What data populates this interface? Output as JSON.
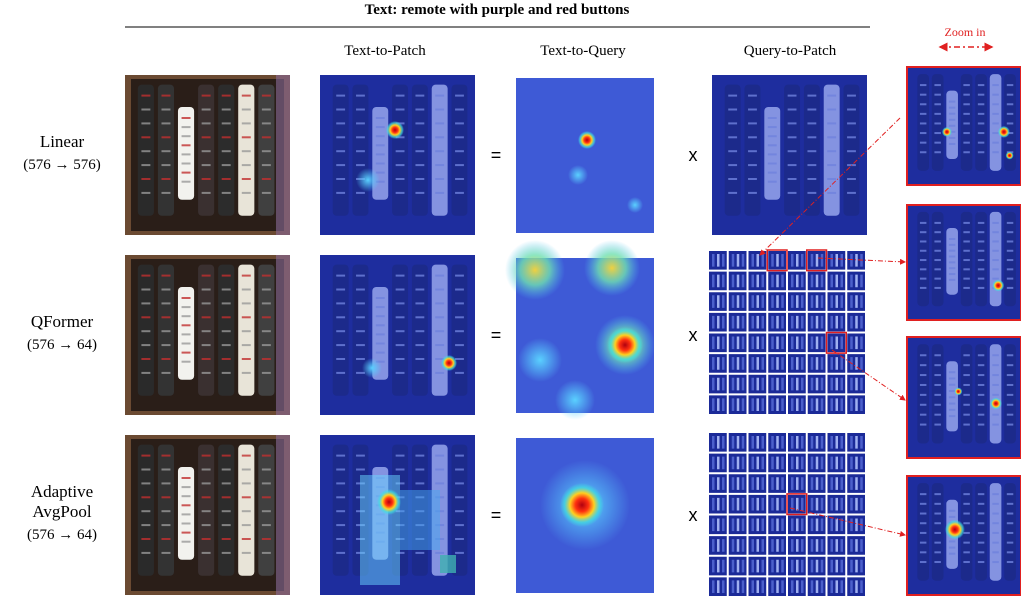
{
  "title": "Text: remote with purple and red buttons",
  "columns": [
    "Text-to-Patch",
    "Text-to-Query",
    "Query-to-Patch"
  ],
  "zoom_label": "Zoom in",
  "equals": "=",
  "times": "x",
  "rows": [
    {
      "name": [
        "Linear"
      ],
      "dims": "(576 → 576)"
    },
    {
      "name": [
        "QFormer"
      ],
      "dims": "(576 → 64)"
    },
    {
      "name": [
        "Adaptive",
        "AvgPool"
      ],
      "dims": "(576 → 64)"
    }
  ]
}
